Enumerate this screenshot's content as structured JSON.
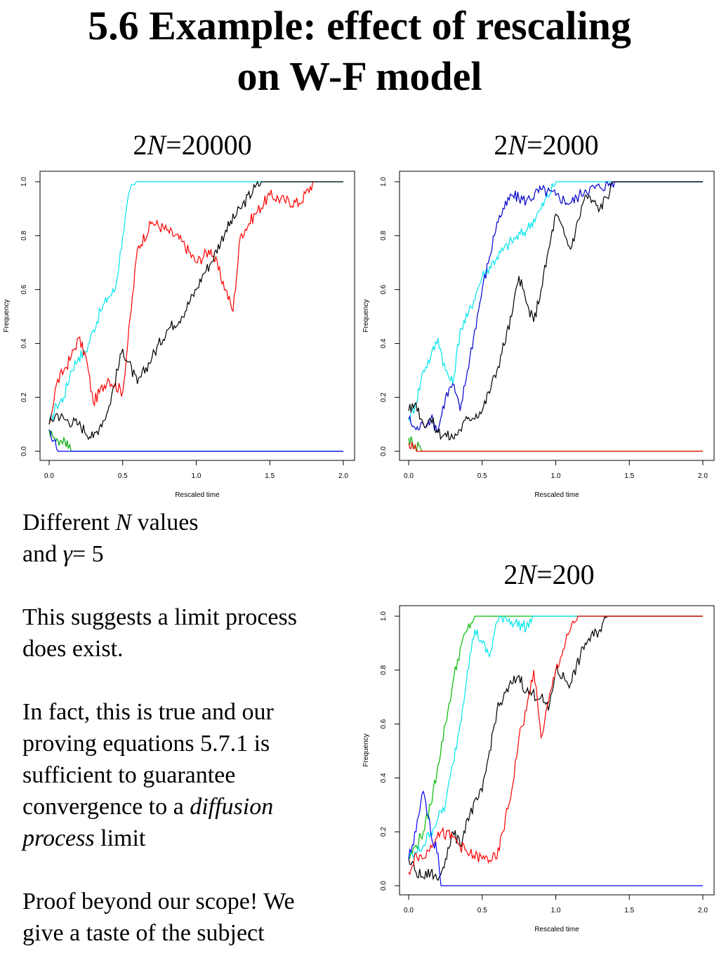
{
  "slide": {
    "title_line1": "5.6 Example: effect of rescaling",
    "title_line2": "on W-F model"
  },
  "panels": [
    {
      "prefix": "2",
      "var": "N",
      "suffix": "=20000"
    },
    {
      "prefix": "2",
      "var": "N",
      "suffix": "=2000"
    },
    {
      "prefix": "2",
      "var": "N",
      "suffix": "=200"
    }
  ],
  "text": {
    "p1_a": "Different ",
    "p1_N": "N",
    "p1_b": " values",
    "p1_c": "and ",
    "p1_gamma": "γ",
    "p1_d": "= 5",
    "p2_a": "This suggests a limit process",
    "p2_b": "does exist.",
    "p3_a": "In fact, this is true and our",
    "p3_b": "proving equations 5.7.1 is",
    "p3_c": "sufficient to guarantee",
    "p3_d": "convergence to a ",
    "p3_e": "diffusion",
    "p3_f": "process",
    "p3_g": " limit",
    "p4_a": "Proof beyond our scope! We",
    "p4_b": "give a taste of the subject"
  },
  "chart_data": [
    {
      "type": "line",
      "xlabel": "Rescaled time",
      "ylabel": "Frequency",
      "xlim": [
        0,
        2.0
      ],
      "ylim": [
        0,
        1.0
      ],
      "xticks": [
        "0.0",
        "0.5",
        "1.0",
        "1.5",
        "2.0"
      ],
      "yticks": [
        "0.0",
        "0.2",
        "0.4",
        "0.6",
        "0.8",
        "1.0"
      ],
      "series": [
        {
          "color": "#00e5ee",
          "x": [
            0,
            0.05,
            0.1,
            0.15,
            0.2,
            0.25,
            0.3,
            0.35,
            0.4,
            0.45,
            0.5,
            0.55,
            0.6,
            0.65,
            2.0
          ],
          "y": [
            0.1,
            0.17,
            0.2,
            0.3,
            0.35,
            0.37,
            0.45,
            0.52,
            0.57,
            0.6,
            0.8,
            0.97,
            1.0,
            1.0,
            1.0
          ]
        },
        {
          "color": "#ff0000",
          "x": [
            0,
            0.05,
            0.1,
            0.15,
            0.2,
            0.25,
            0.3,
            0.4,
            0.5,
            0.6,
            0.7,
            0.8,
            0.9,
            1.0,
            1.1,
            1.2,
            1.25,
            1.3,
            1.4,
            1.5,
            1.6,
            1.7,
            1.8
          ],
          "y": [
            0.1,
            0.25,
            0.3,
            0.35,
            0.42,
            0.35,
            0.18,
            0.27,
            0.22,
            0.75,
            0.85,
            0.82,
            0.78,
            0.7,
            0.75,
            0.6,
            0.52,
            0.8,
            0.88,
            0.95,
            0.93,
            0.92,
            1.0
          ]
        },
        {
          "color": "#000000",
          "x": [
            0,
            0.05,
            0.1,
            0.2,
            0.3,
            0.35,
            0.4,
            0.5,
            0.6,
            0.7,
            0.8,
            0.9,
            1.0,
            1.05,
            1.1,
            1.2,
            1.3,
            1.4,
            1.45,
            2.0
          ],
          "y": [
            0.1,
            0.14,
            0.12,
            0.1,
            0.05,
            0.1,
            0.15,
            0.38,
            0.25,
            0.35,
            0.45,
            0.5,
            0.6,
            0.66,
            0.7,
            0.82,
            0.9,
            0.98,
            1.0,
            1.0
          ]
        },
        {
          "color": "#00aa00",
          "x": [
            0,
            0.03,
            0.06,
            0.1,
            0.13,
            0.15,
            2.0
          ],
          "y": [
            0.08,
            0.05,
            0.04,
            0.05,
            0.01,
            0,
            0
          ]
        },
        {
          "color": "#0000ff",
          "x": [
            0,
            0.03,
            0.05,
            0.07,
            2.0
          ],
          "y": [
            0.08,
            0.04,
            0.01,
            0,
            0
          ]
        }
      ]
    },
    {
      "type": "line",
      "xlabel": "Rescaled time",
      "ylabel": "Frequency",
      "xlim": [
        0,
        2.0
      ],
      "ylim": [
        0,
        1.0
      ],
      "xticks": [
        "0.0",
        "0.5",
        "1.0",
        "1.5",
        "2.0"
      ],
      "yticks": [
        "0.0",
        "0.2",
        "0.4",
        "0.6",
        "0.8",
        "1.0"
      ],
      "series": [
        {
          "color": "#00e5ee",
          "x": [
            0,
            0.05,
            0.1,
            0.15,
            0.2,
            0.25,
            0.3,
            0.35,
            0.4,
            0.5,
            0.6,
            0.7,
            0.8,
            0.9,
            1.0,
            2.0
          ],
          "y": [
            0.12,
            0.18,
            0.3,
            0.35,
            0.42,
            0.3,
            0.25,
            0.45,
            0.5,
            0.65,
            0.72,
            0.78,
            0.82,
            0.9,
            1.0,
            1.0
          ]
        },
        {
          "color": "#0000cd",
          "x": [
            0,
            0.05,
            0.1,
            0.15,
            0.2,
            0.25,
            0.3,
            0.35,
            0.4,
            0.5,
            0.55,
            0.6,
            0.65,
            0.7,
            0.8,
            0.9,
            1.0,
            1.1,
            1.2,
            1.3,
            1.4,
            2.0
          ],
          "y": [
            0.12,
            0.08,
            0.1,
            0.12,
            0.08,
            0.2,
            0.25,
            0.15,
            0.3,
            0.6,
            0.72,
            0.85,
            0.9,
            0.95,
            0.93,
            0.97,
            0.95,
            0.92,
            0.97,
            0.98,
            1.0,
            1.0
          ]
        },
        {
          "color": "#000000",
          "x": [
            0,
            0.05,
            0.1,
            0.15,
            0.2,
            0.3,
            0.35,
            0.4,
            0.5,
            0.6,
            0.7,
            0.75,
            0.8,
            0.85,
            0.9,
            1.0,
            1.1,
            1.2,
            1.3,
            1.4,
            2.0
          ],
          "y": [
            0.15,
            0.18,
            0.1,
            0.12,
            0.07,
            0.05,
            0.08,
            0.12,
            0.15,
            0.3,
            0.5,
            0.65,
            0.55,
            0.48,
            0.6,
            0.88,
            0.75,
            0.95,
            0.9,
            1.0,
            1.0
          ]
        },
        {
          "color": "#00aa00",
          "x": [
            0,
            0.04,
            0.07,
            0.1,
            2.0
          ],
          "y": [
            0.05,
            0.02,
            0.02,
            0,
            0
          ]
        },
        {
          "color": "#ff0000",
          "x": [
            0,
            0.03,
            0.06,
            2.0
          ],
          "y": [
            0.03,
            0.01,
            0,
            0
          ]
        }
      ]
    },
    {
      "type": "line",
      "xlabel": "Rescaled time",
      "ylabel": "Frequency",
      "xlim": [
        0,
        2.0
      ],
      "ylim": [
        0,
        1.0
      ],
      "xticks": [
        "0.0",
        "0.5",
        "1.0",
        "1.5",
        "2.0"
      ],
      "yticks": [
        "0.0",
        "0.2",
        "0.4",
        "0.6",
        "0.8",
        "1.0"
      ],
      "series": [
        {
          "color": "#00bb00",
          "x": [
            0,
            0.05,
            0.1,
            0.15,
            0.2,
            0.25,
            0.3,
            0.35,
            0.4,
            0.45,
            2.0
          ],
          "y": [
            0.1,
            0.15,
            0.2,
            0.3,
            0.45,
            0.6,
            0.75,
            0.88,
            0.95,
            1.0,
            1.0
          ]
        },
        {
          "color": "#00e5ee",
          "x": [
            0,
            0.05,
            0.1,
            0.15,
            0.2,
            0.25,
            0.3,
            0.35,
            0.4,
            0.45,
            0.5,
            0.55,
            0.6,
            0.65,
            0.7,
            0.8,
            0.85,
            2.0
          ],
          "y": [
            0.1,
            0.12,
            0.15,
            0.2,
            0.25,
            0.3,
            0.45,
            0.6,
            0.8,
            0.95,
            0.9,
            0.85,
            0.98,
            1.0,
            0.98,
            0.96,
            1.0,
            1.0
          ]
        },
        {
          "color": "#000000",
          "x": [
            0,
            0.05,
            0.1,
            0.15,
            0.2,
            0.25,
            0.3,
            0.35,
            0.4,
            0.5,
            0.6,
            0.7,
            0.75,
            0.8,
            0.9,
            0.95,
            1.0,
            1.1,
            1.2,
            1.3,
            1.35,
            2.0
          ],
          "y": [
            0.1,
            0.05,
            0.03,
            0.05,
            0.02,
            0.1,
            0.2,
            0.15,
            0.25,
            0.35,
            0.65,
            0.75,
            0.78,
            0.72,
            0.7,
            0.65,
            0.8,
            0.75,
            0.9,
            0.95,
            1.0,
            1.0
          ]
        },
        {
          "color": "#ff0000",
          "x": [
            0,
            0.05,
            0.1,
            0.15,
            0.2,
            0.3,
            0.4,
            0.5,
            0.6,
            0.7,
            0.75,
            0.8,
            0.85,
            0.9,
            1.0,
            1.1,
            1.15,
            2.0
          ],
          "y": [
            0.05,
            0.12,
            0.1,
            0.15,
            0.2,
            0.18,
            0.12,
            0.1,
            0.1,
            0.35,
            0.55,
            0.65,
            0.8,
            0.55,
            0.8,
            0.95,
            1.0,
            1.0
          ]
        },
        {
          "color": "#0000ff",
          "x": [
            0,
            0.05,
            0.1,
            0.15,
            0.2,
            0.22,
            2.0
          ],
          "y": [
            0.1,
            0.2,
            0.35,
            0.2,
            0.12,
            0,
            0
          ]
        }
      ]
    }
  ]
}
